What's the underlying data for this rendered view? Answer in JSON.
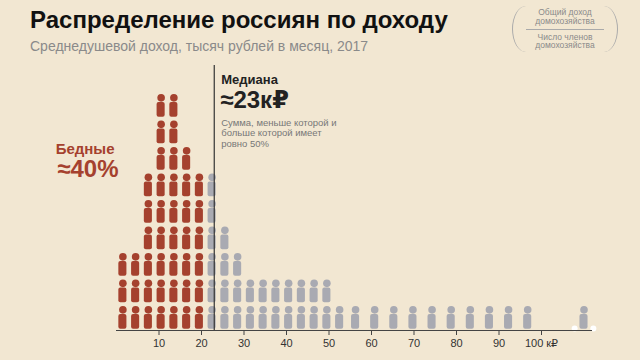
{
  "chart_data": {
    "type": "histogram",
    "title": "Распределение россиян по доходу",
    "subtitle": "Среднедушевой доход, тысяч рублей в месяц, 2017",
    "formula": {
      "numerator": "Общий доход домохозяйства",
      "denominator": "Число членов домохозяйства"
    },
    "bins": [
      0,
      3,
      6,
      9,
      12,
      15,
      18,
      21,
      24,
      27,
      30,
      33,
      36,
      39,
      42,
      45,
      48,
      51,
      54,
      58.5,
      63,
      67.5,
      72,
      76.5,
      81,
      85.5,
      90,
      94.5,
      99
    ],
    "values": [
      3,
      3,
      6,
      9,
      9,
      7,
      6,
      6,
      4,
      3,
      2,
      2,
      2,
      2,
      2,
      2,
      2,
      1,
      1,
      1,
      1,
      1,
      1,
      1,
      1,
      1,
      1,
      1
    ],
    "colors": [
      "#a5412e",
      "#a5412e",
      "#a5412e",
      "#a5412e",
      "#a5412e",
      "#a5412e",
      "#a5412e",
      "#a9aab2",
      "#a9aab2",
      "#a9aab2",
      "#a9aab2",
      "#a9aab2",
      "#a9aab2",
      "#a9aab2",
      "#a9aab2",
      "#a9aab2",
      "#a9aab2",
      "#a9aab2",
      "#a9aab2",
      "#a9aab2",
      "#a9aab2",
      "#a9aab2",
      "#a9aab2",
      "#a9aab2",
      "#a9aab2",
      "#a9aab2",
      "#a9aab2",
      "#a9aab2"
    ],
    "outliers": [
      110
    ],
    "median": {
      "value": 23,
      "label": "Медиана",
      "value_label": "≈23к₽",
      "note": "Сумма, меньше которой и больше которой имеет ровно 50%"
    },
    "poor": {
      "label": "Бедные",
      "value_label": "≈40%"
    },
    "xlim": [
      0,
      112
    ],
    "ylim": [
      0,
      10
    ],
    "xticks": [
      10,
      20,
      30,
      40,
      50,
      60,
      70,
      80,
      90,
      {
        "value": 100,
        "label": "100 к₽"
      }
    ],
    "tick_labels": "x"
  }
}
